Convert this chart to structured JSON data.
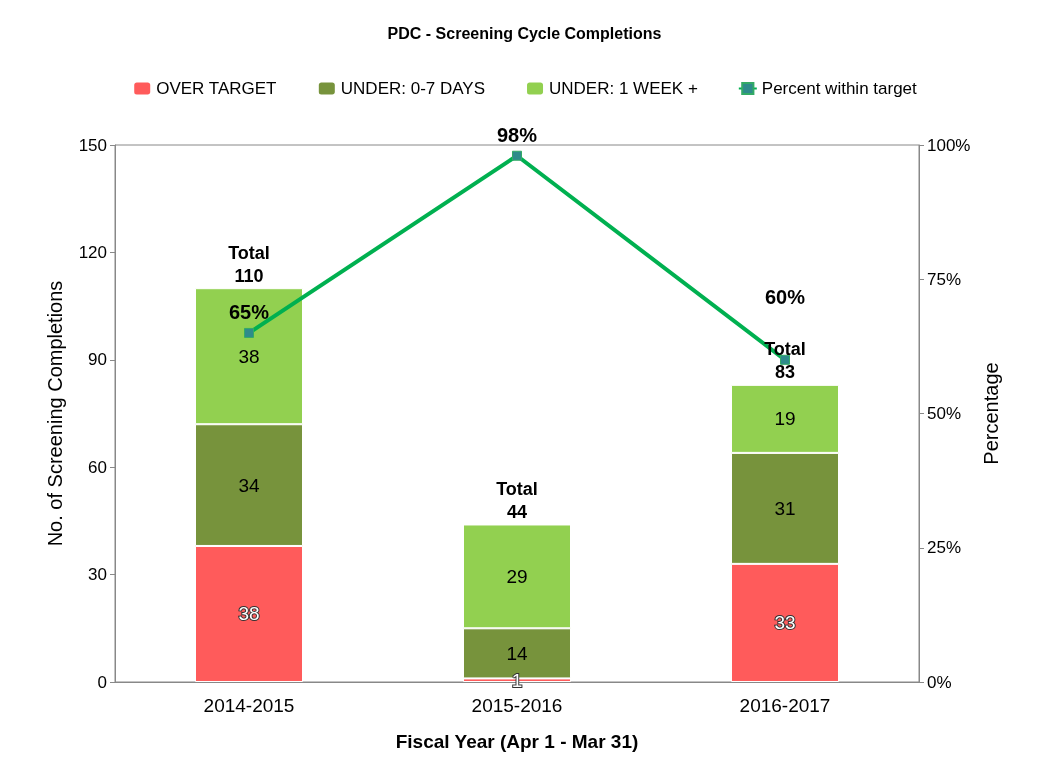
{
  "chart_data": {
    "type": "bar",
    "title": "PDC - Screening Cycle Completions",
    "xlabel": "Fiscal Year (Apr 1 - Mar 31)",
    "ylabel": "No. of Screening Completions",
    "y2label": "Percentage",
    "categories": [
      "2014-2015",
      "2015-2016",
      "2016-2017"
    ],
    "stacked": true,
    "series": [
      {
        "name": "OVER TARGET",
        "color": "#ff5b5b",
        "values": [
          38,
          1,
          33
        ]
      },
      {
        "name": "UNDER: 0-7 DAYS",
        "color": "#77933c",
        "values": [
          34,
          14,
          31
        ]
      },
      {
        "name": "UNDER: 1 WEEK +",
        "color": "#92d050",
        "values": [
          38,
          29,
          19
        ]
      },
      {
        "name": "Percent within target",
        "type": "line",
        "axis": "y2",
        "color": "#00b050",
        "values": [
          65,
          98,
          60
        ],
        "value_labels": [
          "65%",
          "98%",
          "60%"
        ],
        "marker": "square",
        "line_style": "solid"
      }
    ],
    "totals": [
      "Total\n110",
      "Total\n44",
      "Total\n83"
    ],
    "data_labels": true,
    "ylim": [
      0,
      150
    ],
    "yticks": [
      0,
      30,
      60,
      90,
      120,
      150
    ],
    "y2lim": [
      0,
      100
    ],
    "y2ticks": [
      {
        "value": 0,
        "label": "0%"
      },
      {
        "value": 25,
        "label": "25%"
      },
      {
        "value": 50,
        "label": "50%"
      },
      {
        "value": 75,
        "label": "75%"
      },
      {
        "value": 100,
        "label": "100%"
      }
    ],
    "grid": false,
    "legend": "top"
  }
}
